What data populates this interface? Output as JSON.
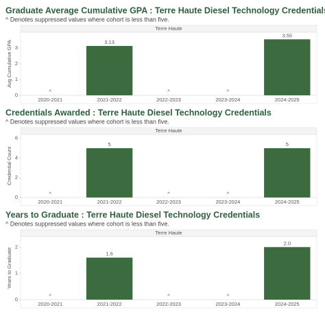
{
  "chart_data": [
    {
      "type": "bar",
      "title": "Graduate Average Cumulative GPA : Terre Haute Diesel Technology Credentials",
      "subtitle": "^ Denotes suppressed values where cohort is less than five.",
      "panel_header": "Terre Haute",
      "y_label": "Avg Cumulative GPA",
      "categories": [
        "2020-2021",
        "2021-2022",
        "2022-2023",
        "2023-2024",
        "2024-2025"
      ],
      "values": [
        null,
        3.13,
        null,
        null,
        3.55
      ],
      "value_labels": [
        "^",
        "3.13",
        "^",
        "^",
        "3.55"
      ],
      "color": "#3d6b40",
      "ylim": [
        0,
        4
      ],
      "yticks": [
        0,
        1,
        2,
        3
      ],
      "grid": false
    },
    {
      "type": "bar",
      "title": "Credentials Awarded : Terre Haute Diesel Technology Credentials",
      "subtitle": "^ Denotes suppressed values where cohort is less than five.",
      "panel_header": "Terre Haute",
      "y_label": "Credential Count",
      "categories": [
        "2020-2021",
        "2021-2022",
        "2022-2023",
        "2023-2024",
        "2024-2025"
      ],
      "values": [
        null,
        5,
        null,
        null,
        5
      ],
      "value_labels": [
        "^",
        "5",
        "^",
        "^",
        "5"
      ],
      "color": "#3d6b40",
      "ylim": [
        0,
        6.4
      ],
      "yticks": [
        0,
        2,
        4,
        6
      ],
      "grid": false
    },
    {
      "type": "bar",
      "title": "Years to Graduate : Terre Haute Diesel Technology Credentials",
      "subtitle": "^ Denotes suppressed values where cohort is less than five.",
      "panel_header": "Terre Haute",
      "y_label": "Years to Graduate",
      "categories": [
        "2020-2021",
        "2021-2022",
        "2022-2023",
        "2023-2024",
        "2024-2025"
      ],
      "values": [
        null,
        1.6,
        null,
        null,
        2.0
      ],
      "value_labels": [
        "^",
        "1.6",
        "^",
        "^",
        "2.0"
      ],
      "color": "#3d6b40",
      "ylim": [
        0,
        2.4
      ],
      "yticks": [
        0,
        1,
        2
      ],
      "grid": false
    }
  ]
}
